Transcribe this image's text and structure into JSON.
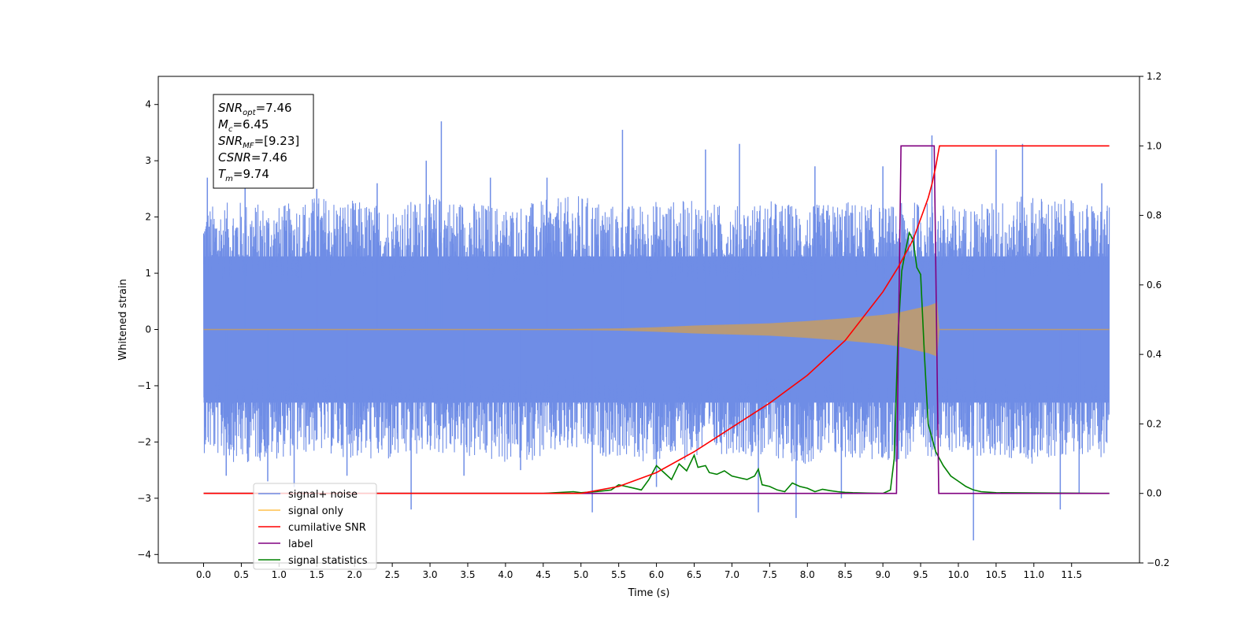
{
  "chart_data": {
    "type": "line",
    "title": "",
    "xlabel": "Time (s)",
    "ylabel": "Whitened strain",
    "xlim": [
      -0.6,
      12.4
    ],
    "ylim": [
      -4.15,
      4.5
    ],
    "y2lim": [
      -0.2,
      1.2
    ],
    "x_ticks": [
      0.0,
      0.5,
      1.0,
      1.5,
      2.0,
      2.5,
      3.0,
      3.5,
      4.0,
      4.5,
      5.0,
      5.5,
      6.0,
      6.5,
      7.0,
      7.5,
      8.0,
      8.5,
      9.0,
      9.5,
      10.0,
      10.5,
      11.0,
      11.5
    ],
    "x_tick_labels": [
      "0.0",
      "0.5",
      "1.0",
      "1.5",
      "2.0",
      "2.5",
      "3.0",
      "3.5",
      "4.0",
      "4.5",
      "5.0",
      "5.5",
      "6.0",
      "6.5",
      "7.0",
      "7.5",
      "8.0",
      "8.5",
      "9.0",
      "9.5",
      "10.0",
      "10.5",
      "11.0",
      "11.5"
    ],
    "y_ticks": [
      -4,
      -3,
      -2,
      -1,
      0,
      1,
      2,
      3,
      4
    ],
    "y_tick_labels": [
      "−4",
      "−3",
      "−2",
      "−1",
      "0",
      "1",
      "2",
      "3",
      "4"
    ],
    "y2_ticks": [
      -0.2,
      0.0,
      0.2,
      0.4,
      0.6,
      0.8,
      1.0,
      1.2
    ],
    "y2_tick_labels": [
      "−0.2",
      "0.0",
      "0.2",
      "0.4",
      "0.6",
      "0.8",
      "1.0",
      "1.2"
    ],
    "grid": false,
    "legend_position": "bottom-left",
    "colors": {
      "signal_noise": "#6f8de6",
      "signal_only": "#ffc04d",
      "signal_envelope": "#b89a78",
      "cumulative_snr": "#ff0000",
      "label": "#800080",
      "signal_statistics": "#008000"
    },
    "noise_envelope": {
      "x": [
        0.0,
        0.5,
        1.0,
        1.5,
        2.0,
        2.5,
        3.0,
        3.5,
        4.0,
        4.5,
        5.0,
        5.5,
        6.0,
        6.5,
        7.0,
        7.5,
        8.0,
        8.5,
        9.0,
        9.5,
        10.0,
        10.5,
        11.0,
        11.5,
        12.0
      ],
      "upper": [
        2.2,
        2.3,
        2.2,
        2.4,
        2.3,
        2.2,
        2.4,
        2.3,
        2.2,
        2.3,
        2.4,
        2.2,
        2.3,
        2.3,
        2.2,
        2.3,
        2.2,
        2.3,
        2.2,
        2.3,
        2.2,
        2.3,
        2.4,
        2.3,
        2.2
      ],
      "lower": [
        -2.2,
        -2.4,
        -2.3,
        -2.2,
        -2.3,
        -2.4,
        -2.2,
        -2.3,
        -2.4,
        -2.3,
        -2.2,
        -2.3,
        -2.4,
        -2.3,
        -2.2,
        -2.3,
        -2.4,
        -2.3,
        -2.4,
        -2.3,
        -2.2,
        -2.3,
        -2.4,
        -2.2,
        -2.3
      ]
    },
    "noise_spikes": [
      {
        "x": 0.05,
        "y": 2.7
      },
      {
        "x": 0.3,
        "y": -2.6
      },
      {
        "x": 0.55,
        "y": 2.6
      },
      {
        "x": 0.85,
        "y": -2.7
      },
      {
        "x": 1.2,
        "y": -2.8
      },
      {
        "x": 1.5,
        "y": 2.5
      },
      {
        "x": 1.9,
        "y": -2.6
      },
      {
        "x": 2.3,
        "y": 2.6
      },
      {
        "x": 2.75,
        "y": -3.2
      },
      {
        "x": 2.95,
        "y": 3.0
      },
      {
        "x": 3.15,
        "y": 3.7
      },
      {
        "x": 3.45,
        "y": -2.6
      },
      {
        "x": 3.8,
        "y": 2.7
      },
      {
        "x": 4.2,
        "y": -2.5
      },
      {
        "x": 4.55,
        "y": 2.7
      },
      {
        "x": 5.15,
        "y": -3.25
      },
      {
        "x": 5.55,
        "y": 3.55
      },
      {
        "x": 6.0,
        "y": -2.8
      },
      {
        "x": 6.65,
        "y": 3.2
      },
      {
        "x": 7.1,
        "y": 3.3
      },
      {
        "x": 7.35,
        "y": -3.25
      },
      {
        "x": 7.85,
        "y": -3.35
      },
      {
        "x": 8.1,
        "y": 2.9
      },
      {
        "x": 8.45,
        "y": -3.0
      },
      {
        "x": 9.0,
        "y": 2.9
      },
      {
        "x": 9.65,
        "y": 3.45
      },
      {
        "x": 10.2,
        "y": -3.75
      },
      {
        "x": 10.5,
        "y": 3.2
      },
      {
        "x": 10.85,
        "y": 3.3
      },
      {
        "x": 11.35,
        "y": -3.2
      },
      {
        "x": 11.6,
        "y": -2.9
      },
      {
        "x": 11.9,
        "y": 2.6
      }
    ],
    "series": [
      {
        "name": "signal+ noise",
        "axis": "left"
      },
      {
        "name": "signal only",
        "axis": "left",
        "envelope_x": [
          0.0,
          4.5,
          5.0,
          5.5,
          6.0,
          6.5,
          7.0,
          7.5,
          8.0,
          8.5,
          9.0,
          9.2,
          9.4,
          9.6,
          9.7,
          9.72,
          9.75,
          12.0
        ],
        "envelope_y": [
          0.0,
          0.0,
          0.01,
          0.02,
          0.04,
          0.07,
          0.09,
          0.11,
          0.15,
          0.2,
          0.26,
          0.3,
          0.36,
          0.42,
          0.47,
          0.5,
          0.0,
          0.0
        ]
      },
      {
        "name": "cumilative SNR",
        "axis": "right",
        "x": [
          0.0,
          5.0,
          5.5,
          6.0,
          6.5,
          7.0,
          7.5,
          8.0,
          8.5,
          9.0,
          9.2,
          9.4,
          9.5,
          9.6,
          9.65,
          9.7,
          9.75,
          12.0
        ],
        "values": [
          0.0,
          0.0,
          0.02,
          0.06,
          0.12,
          0.19,
          0.26,
          0.34,
          0.44,
          0.58,
          0.65,
          0.73,
          0.79,
          0.85,
          0.89,
          0.94,
          1.0,
          1.0
        ]
      },
      {
        "name": "label",
        "axis": "right",
        "x": [
          0.0,
          9.18,
          9.24,
          9.68,
          9.74,
          12.0
        ],
        "values": [
          0.0,
          0.0,
          1.0,
          1.0,
          0.0,
          0.0
        ]
      },
      {
        "name": "signal statistics",
        "axis": "right",
        "x": [
          0.0,
          4.5,
          4.9,
          5.0,
          5.2,
          5.4,
          5.5,
          5.6,
          5.7,
          5.8,
          5.9,
          6.0,
          6.1,
          6.2,
          6.3,
          6.4,
          6.5,
          6.55,
          6.65,
          6.7,
          6.8,
          6.9,
          7.0,
          7.1,
          7.2,
          7.3,
          7.35,
          7.4,
          7.5,
          7.6,
          7.7,
          7.8,
          7.9,
          8.0,
          8.1,
          8.2,
          8.3,
          8.4,
          8.5,
          8.6,
          8.8,
          9.0,
          9.1,
          9.15,
          9.2,
          9.25,
          9.3,
          9.35,
          9.4,
          9.45,
          9.5,
          9.55,
          9.6,
          9.7,
          9.8,
          9.9,
          10.0,
          10.1,
          10.2,
          10.3,
          10.5,
          12.0
        ],
        "values": [
          0.0,
          0.0,
          0.005,
          0.002,
          0.005,
          0.01,
          0.025,
          0.02,
          0.015,
          0.01,
          0.04,
          0.08,
          0.06,
          0.04,
          0.085,
          0.065,
          0.11,
          0.075,
          0.08,
          0.06,
          0.055,
          0.065,
          0.05,
          0.045,
          0.04,
          0.05,
          0.07,
          0.025,
          0.02,
          0.01,
          0.005,
          0.03,
          0.02,
          0.015,
          0.005,
          0.012,
          0.008,
          0.005,
          0.003,
          0.002,
          0.001,
          0.0,
          0.01,
          0.1,
          0.45,
          0.64,
          0.7,
          0.75,
          0.73,
          0.65,
          0.63,
          0.4,
          0.2,
          0.12,
          0.08,
          0.05,
          0.035,
          0.02,
          0.01,
          0.005,
          0.002,
          0.0
        ]
      }
    ],
    "annotations": {
      "snr_opt_base": "SNR",
      "snr_opt_sub": "opt",
      "snr_opt_value": "=7.46",
      "mc_base": "M",
      "mc_sub": "c",
      "mc_value": "=6.45",
      "snr_mf_base": "SNR",
      "snr_mf_sub": "MF",
      "snr_mf_value": "=[9.23]",
      "csnr_base": "CSNR",
      "csnr_value": "=7.46",
      "tm_base": "T",
      "tm_sub": "m",
      "tm_value": "=9.74"
    },
    "legend_entries": [
      "signal+ noise",
      "signal only",
      "cumilative SNR",
      "label",
      "signal statistics"
    ]
  }
}
